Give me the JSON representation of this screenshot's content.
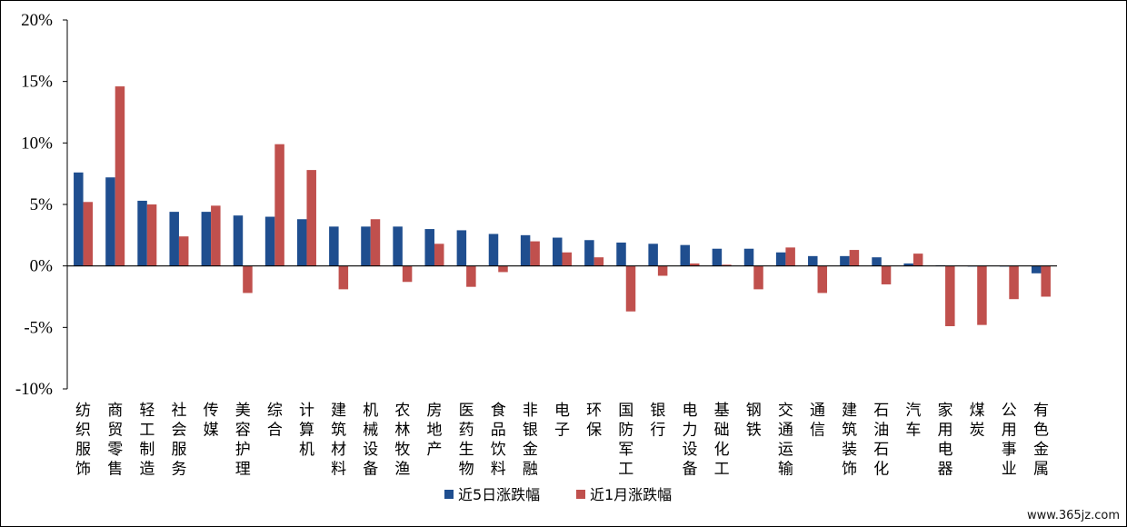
{
  "watermark": "www.365jz.com",
  "colors": {
    "series_5d": "#1F4E8F",
    "series_1m": "#C0504D",
    "axis": "#000000"
  },
  "chart_data": {
    "type": "bar",
    "ylim": [
      -10,
      20
    ],
    "yticks": [
      -10,
      -5,
      0,
      5,
      10,
      15,
      20
    ],
    "ytick_labels": [
      "-10%",
      "-5%",
      "0%",
      "5%",
      "10%",
      "15%",
      "20%"
    ],
    "legend_position": "bottom-center",
    "grid": false,
    "categories": [
      "纺织服饰",
      "商贸零售",
      "轻工制造",
      "社会服务",
      "传媒",
      "美容护理",
      "综合",
      "计算机",
      "建筑材料",
      "机械设备",
      "农林牧渔",
      "房地产",
      "医药生物",
      "食品饮料",
      "非银金融",
      "电子",
      "环保",
      "国防军工",
      "银行",
      "电力设备",
      "基础化工",
      "钢铁",
      "交通运输",
      "通信",
      "建筑装饰",
      "石油石化",
      "汽车",
      "家用电器",
      "煤炭",
      "公用事业",
      "有色金属"
    ],
    "series": [
      {
        "name": "近5日涨跌幅",
        "values": [
          7.6,
          7.2,
          5.3,
          4.4,
          4.4,
          4.1,
          4.0,
          3.8,
          3.2,
          3.2,
          3.2,
          3.0,
          2.9,
          2.6,
          2.5,
          2.3,
          2.1,
          1.9,
          1.8,
          1.7,
          1.4,
          1.4,
          1.1,
          0.8,
          0.8,
          0.7,
          0.2,
          0.05,
          -0.05,
          -0.05,
          -0.6
        ]
      },
      {
        "name": "近1月涨跌幅",
        "values": [
          5.2,
          14.6,
          5.0,
          2.4,
          4.9,
          -2.2,
          9.9,
          7.8,
          -1.9,
          3.8,
          -1.3,
          1.8,
          -1.7,
          -0.5,
          2.0,
          1.1,
          0.7,
          -3.7,
          -0.8,
          0.2,
          0.1,
          -1.9,
          1.5,
          -2.2,
          1.3,
          -1.5,
          1.0,
          -4.9,
          -4.8,
          -2.7,
          -2.5
        ]
      }
    ]
  }
}
